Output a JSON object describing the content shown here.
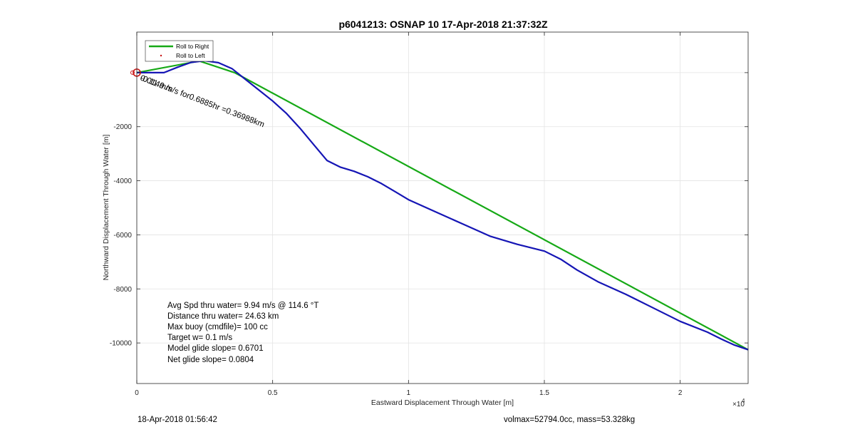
{
  "chart_data": {
    "type": "line",
    "title": "p6041213: OSNAP 10 17-Apr-2018 21:37:32Z",
    "xlabel": "Eastward Displacement Through Water [m]",
    "ylabel": "Northward Displacement Through Water [m]",
    "x_exponent_label": "×10",
    "x_exponent_power": "4",
    "xlim": [
      0,
      22500
    ],
    "ylim": [
      -11500,
      1500
    ],
    "xticks": [
      0,
      5000,
      10000,
      15000,
      20000
    ],
    "xtick_labels": [
      "0",
      "0.5",
      "1",
      "1.5",
      "2"
    ],
    "yticks": [
      -10000,
      -8000,
      -6000,
      -4000,
      -2000,
      0
    ],
    "ytick_labels": [
      "-10000",
      "-8000",
      "-6000",
      "-4000",
      "-2000",
      ""
    ],
    "grid": true,
    "legend_position": "top-left",
    "series": [
      {
        "name": "Roll to Right",
        "color": "#16a916",
        "style": "line",
        "x": [
          0,
          2300,
          3600,
          22500
        ],
        "y": [
          0,
          430,
          0,
          -10250
        ]
      },
      {
        "name": "",
        "color": "#1515b5",
        "style": "line",
        "x": [
          0,
          1000,
          1500,
          2000,
          2500,
          3000,
          3500,
          4000,
          4500,
          5000,
          5500,
          6000,
          6500,
          7000,
          7500,
          8000,
          8500,
          9000,
          9500,
          10000,
          11000,
          12000,
          13000,
          14000,
          15000,
          15600,
          16200,
          17000,
          18000,
          19000,
          20000,
          21000,
          21500,
          22000,
          22500
        ],
        "y": [
          0,
          0,
          200,
          380,
          440,
          370,
          150,
          -250,
          -650,
          -1050,
          -1500,
          -2050,
          -2650,
          -3250,
          -3500,
          -3650,
          -3850,
          -4100,
          -4400,
          -4700,
          -5150,
          -5600,
          -6050,
          -6350,
          -6600,
          -6900,
          -7300,
          -7750,
          -8200,
          -8700,
          -9200,
          -9600,
          -9850,
          -10080,
          -10250
        ]
      },
      {
        "name": "Roll to Left",
        "color": "#c81414",
        "style": "marker",
        "x": [],
        "y": []
      }
    ],
    "start_marker": {
      "x": 0,
      "y": 0,
      "color": "#c81414"
    },
    "annotations": [
      "-0.11 m/s",
      "0.0149 m/s for0.6885hr =0.36988km"
    ],
    "summary": [
      "Avg Spd thru water=  9.94 m/s @ 114.6 °T",
      "Distance thru water= 24.63 km",
      "Max buoy (cmdfile)= 100 cc",
      "Target w= 0.1 m/s",
      "Model glide slope= 0.6701",
      "Net glide slope= 0.0804"
    ]
  },
  "footer": {
    "timestamp": "18-Apr-2018 01:56:42",
    "vehicle_info": "volmax=52794.0cc, mass=53.328kg"
  }
}
